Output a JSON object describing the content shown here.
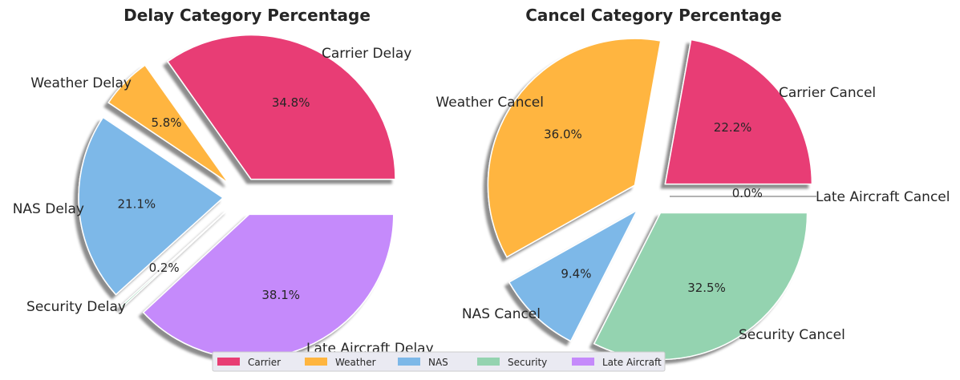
{
  "chart_data": [
    {
      "type": "pie",
      "title": "Delay Category Percentage",
      "labels": [
        "Carrier Delay",
        "Weather Delay",
        "NAS Delay",
        "Security Delay",
        "Late Aircraft Delay"
      ],
      "values": [
        34.8,
        5.8,
        21.1,
        0.2,
        38.1
      ],
      "percent_labels": [
        "34.8%",
        "5.8%",
        "21.1%",
        "0.2%",
        "38.1%"
      ],
      "colors": [
        "#e83e74",
        "#ffb53f",
        "#7db8e8",
        "#94d3b0",
        "#c58afb"
      ],
      "exploded": true,
      "shadow": true
    },
    {
      "type": "pie",
      "title": "Cancel Category Percentage",
      "labels": [
        "Carrier Cancel",
        "Weather Cancel",
        "NAS Cancel",
        "Security Cancel",
        "Late Aircraft Cancel"
      ],
      "values": [
        22.2,
        36.0,
        9.4,
        32.5,
        0.0
      ],
      "percent_labels": [
        "22.2%",
        "36.0%",
        "9.4%",
        "32.5%",
        "0.0%"
      ],
      "colors": [
        "#e83e74",
        "#ffb53f",
        "#7db8e8",
        "#94d3b0",
        "#c58afb"
      ],
      "exploded": true,
      "shadow": true
    }
  ],
  "legend": {
    "placement": "bottom-center",
    "entries": [
      {
        "label": "Carrier",
        "color": "#e83e74"
      },
      {
        "label": "Weather",
        "color": "#ffb53f"
      },
      {
        "label": "NAS",
        "color": "#7db8e8"
      },
      {
        "label": "Security",
        "color": "#94d3b0"
      },
      {
        "label": "Late Aircraft",
        "color": "#c58afb"
      }
    ]
  }
}
